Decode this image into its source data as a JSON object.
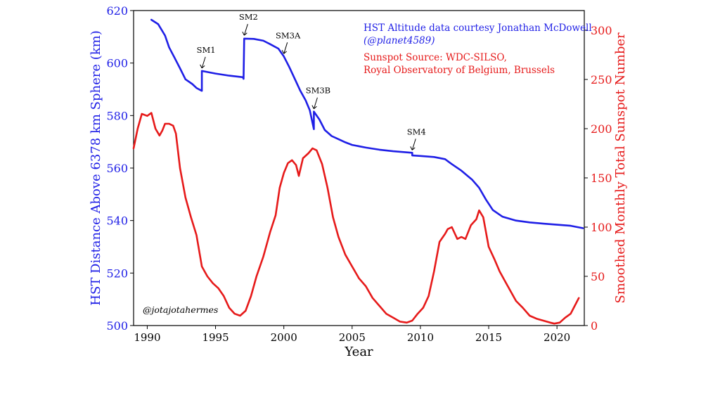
{
  "chart_data": {
    "type": "line",
    "xlabel": "Year",
    "xlim": [
      1989,
      2022
    ],
    "x_ticks": [
      1990,
      1995,
      2000,
      2005,
      2010,
      2015,
      2020
    ],
    "left_axis": {
      "label": "HST Distance Above 6378 km Sphere (km)",
      "range": [
        500,
        620
      ],
      "ticks": [
        500,
        520,
        540,
        560,
        580,
        600,
        620
      ],
      "color": "#1f1fe6"
    },
    "right_axis": {
      "label": "Smoothed Monthly Total Sunspot Number",
      "range": [
        0,
        320
      ],
      "ticks": [
        0,
        50,
        100,
        150,
        200,
        250,
        300
      ],
      "color": "#e61a1a"
    },
    "series": [
      {
        "axis": "left",
        "color": "#1f1fe6",
        "points": [
          [
            1990.3,
            616.5
          ],
          [
            1990.8,
            614.8
          ],
          [
            1991.3,
            610.5
          ],
          [
            1991.6,
            606
          ],
          [
            1992.0,
            602
          ],
          [
            1992.4,
            598
          ],
          [
            1992.8,
            593.8
          ],
          [
            1993.3,
            592
          ],
          [
            1993.6,
            590.5
          ],
          [
            1994.0,
            589.4
          ],
          [
            1994.0,
            597
          ],
          [
            1995.0,
            596
          ],
          [
            1996.0,
            595.2
          ],
          [
            1997.0,
            594.6
          ],
          [
            1997.05,
            594
          ],
          [
            1997.1,
            609.3
          ],
          [
            1997.8,
            609.2
          ],
          [
            1998.5,
            608.5
          ],
          [
            1999.0,
            607.2
          ],
          [
            1999.6,
            605.5
          ],
          [
            2000.0,
            602.5
          ],
          [
            2000.4,
            598.5
          ],
          [
            2000.8,
            594
          ],
          [
            2001.2,
            589.5
          ],
          [
            2001.6,
            585.8
          ],
          [
            2001.9,
            582
          ],
          [
            2002.2,
            574.8
          ],
          [
            2002.2,
            581.5
          ],
          [
            2002.6,
            578.5
          ],
          [
            2003.0,
            574.5
          ],
          [
            2003.5,
            572.2
          ],
          [
            2004.0,
            571
          ],
          [
            2004.5,
            569.8
          ],
          [
            2005.0,
            568.8
          ],
          [
            2006.0,
            567.8
          ],
          [
            2007.0,
            567
          ],
          [
            2008.0,
            566.4
          ],
          [
            2009.4,
            565.8
          ],
          [
            2009.4,
            564.8
          ],
          [
            2010.0,
            564.6
          ],
          [
            2011.0,
            564.2
          ],
          [
            2011.8,
            563.4
          ],
          [
            2012.3,
            561.5
          ],
          [
            2013.0,
            559
          ],
          [
            2013.8,
            555.5
          ],
          [
            2014.3,
            552.5
          ],
          [
            2014.8,
            548
          ],
          [
            2015.3,
            544
          ],
          [
            2016.0,
            541.5
          ],
          [
            2017.0,
            540
          ],
          [
            2018.0,
            539.3
          ],
          [
            2019.0,
            538.8
          ],
          [
            2020.0,
            538.4
          ],
          [
            2021.0,
            538
          ],
          [
            2021.9,
            537.1
          ]
        ]
      },
      {
        "axis": "right",
        "color": "#e61a1a",
        "points": [
          [
            1989.0,
            180
          ],
          [
            1989.3,
            200
          ],
          [
            1989.6,
            215
          ],
          [
            1990.0,
            213
          ],
          [
            1990.3,
            216
          ],
          [
            1990.6,
            200
          ],
          [
            1990.9,
            193
          ],
          [
            1991.1,
            198
          ],
          [
            1991.3,
            205
          ],
          [
            1991.6,
            205
          ],
          [
            1991.9,
            203
          ],
          [
            1992.1,
            195
          ],
          [
            1992.4,
            160
          ],
          [
            1992.8,
            130
          ],
          [
            1993.2,
            110
          ],
          [
            1993.6,
            92
          ],
          [
            1994.0,
            60
          ],
          [
            1994.4,
            50
          ],
          [
            1994.8,
            43
          ],
          [
            1995.2,
            38
          ],
          [
            1995.6,
            30
          ],
          [
            1996.0,
            18
          ],
          [
            1996.4,
            12
          ],
          [
            1996.8,
            10
          ],
          [
            1997.2,
            15
          ],
          [
            1997.6,
            30
          ],
          [
            1998.0,
            50
          ],
          [
            1998.5,
            70
          ],
          [
            1999.0,
            95
          ],
          [
            1999.4,
            112
          ],
          [
            1999.7,
            140
          ],
          [
            2000.0,
            155
          ],
          [
            2000.3,
            165
          ],
          [
            2000.6,
            168
          ],
          [
            2000.9,
            163
          ],
          [
            2001.1,
            152
          ],
          [
            2001.4,
            170
          ],
          [
            2001.8,
            175
          ],
          [
            2002.1,
            180
          ],
          [
            2002.4,
            178
          ],
          [
            2002.8,
            164
          ],
          [
            2003.2,
            140
          ],
          [
            2003.6,
            110
          ],
          [
            2004.0,
            90
          ],
          [
            2004.5,
            72
          ],
          [
            2005.0,
            60
          ],
          [
            2005.5,
            48
          ],
          [
            2006.0,
            40
          ],
          [
            2006.5,
            28
          ],
          [
            2007.0,
            20
          ],
          [
            2007.5,
            12
          ],
          [
            2008.0,
            8
          ],
          [
            2008.5,
            4
          ],
          [
            2009.0,
            3
          ],
          [
            2009.4,
            5
          ],
          [
            2009.8,
            12
          ],
          [
            2010.2,
            18
          ],
          [
            2010.6,
            30
          ],
          [
            2011.0,
            55
          ],
          [
            2011.4,
            85
          ],
          [
            2011.8,
            93
          ],
          [
            2012.0,
            98
          ],
          [
            2012.3,
            100
          ],
          [
            2012.7,
            88
          ],
          [
            2013.0,
            90
          ],
          [
            2013.3,
            88
          ],
          [
            2013.7,
            102
          ],
          [
            2014.1,
            108
          ],
          [
            2014.3,
            117
          ],
          [
            2014.6,
            110
          ],
          [
            2015.0,
            80
          ],
          [
            2015.4,
            68
          ],
          [
            2015.8,
            55
          ],
          [
            2016.2,
            45
          ],
          [
            2016.6,
            35
          ],
          [
            2017.0,
            25
          ],
          [
            2017.5,
            18
          ],
          [
            2018.0,
            10
          ],
          [
            2018.5,
            7
          ],
          [
            2019.0,
            5
          ],
          [
            2019.5,
            3
          ],
          [
            2019.8,
            2
          ],
          [
            2020.2,
            3
          ],
          [
            2020.6,
            8
          ],
          [
            2021.0,
            12
          ],
          [
            2021.3,
            20
          ],
          [
            2021.6,
            28
          ]
        ]
      }
    ],
    "annotations": [
      {
        "text": "SM1",
        "x": 1994.0,
        "y": 597
      },
      {
        "text": "SM2",
        "x": 1997.1,
        "y": 609.5
      },
      {
        "text": "SM3A",
        "x": 2000.0,
        "y": 602.5
      },
      {
        "text": "SM3B",
        "x": 2002.2,
        "y": 581.5
      },
      {
        "text": "SM4",
        "x": 2009.4,
        "y": 565.8
      }
    ],
    "credits": {
      "altitude_line1": "HST Altitude data courtesy Jonathan McDowell",
      "altitude_line2": "(@planet4589)",
      "sunspot_line1": "Sunspot Source: WDC-SILSO,",
      "sunspot_line2": "Royal Observatory of Belgium, Brussels",
      "author": "@jotajotahermes"
    }
  }
}
